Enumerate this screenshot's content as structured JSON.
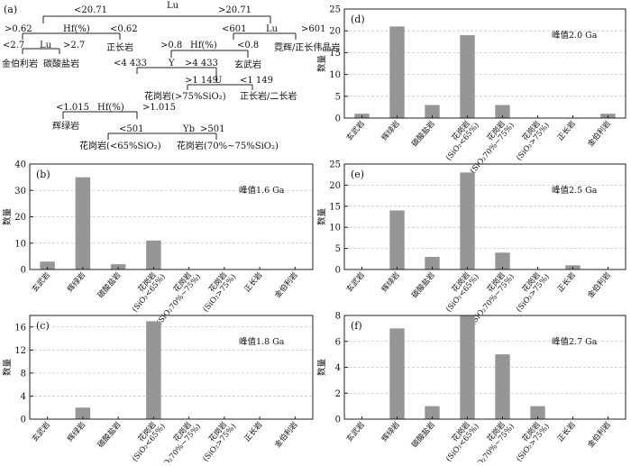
{
  "tree": {
    "label": "(a)",
    "nodes": {
      "lu_root": "Lu",
      "lt_20_71": "<20.71",
      "gt_20_71": ">20.71",
      "hf_left": "Hf(%)",
      "gt_0_62": ">0.62",
      "lt_0_62": "<0.62",
      "lu_mid": "Lu",
      "lt_2_7": "<2.7",
      "gt_2_7": ">2.7",
      "kimberlite": "金伯利岩",
      "carbonatite": "碳酸盐岩",
      "syenite_left": "正长岩",
      "lu_right": "Lu",
      "lt_601": "<601",
      "gt_601": ">601",
      "lamprophyre_pegmatite": "霓辉/正长伟晶岩",
      "hf_right": "Hf(%)",
      "gt_0_8": ">0.8",
      "lt_0_8": "<0.8",
      "basalt": "玄武岩",
      "y_node": "Y",
      "lt_4433": "<4 433",
      "gt_4433": ">4 433",
      "granite_gt75": "花岗岩(>75%SiO₂)",
      "u_node": "U",
      "gt_1149": ">1 149",
      "lt_1149": "<1 149",
      "syenite_monzonite": "正长岩/二长岩",
      "hf_low": "Hf(%)",
      "lt_1_015": "<1.015",
      "gt_1_015": ">1.015",
      "dolerite": "辉绿岩",
      "yb_node": "Yb",
      "lt_501": "<501",
      "gt_501": ">501",
      "granite_lt65": "花岗岩(<65%SiO₂)",
      "granite_70_75": "花岗岩(70%~75%SiO₂)"
    }
  },
  "ylabel": "数量",
  "chart_data": [
    {
      "panel": "(b)",
      "type": "bar",
      "annotation": "峰值1.6 Ga",
      "categories": [
        "玄武岩",
        "辉绿岩",
        "碳酸盐岩",
        "花岗岩(SiO₂<65%)",
        "花岗岩(SiO₂70%~75%)",
        "花岗岩(SiO₂>75%)",
        "正长岩",
        "金伯利岩"
      ],
      "values": [
        3,
        35,
        2,
        11,
        0,
        0,
        0,
        0
      ],
      "ylim": [
        0,
        40
      ],
      "yticks": [
        0,
        10,
        20,
        30,
        40
      ],
      "grid": true
    },
    {
      "panel": "(c)",
      "type": "bar",
      "annotation": "峰值1.8 Ga",
      "categories": [
        "玄武岩",
        "辉绿岩",
        "碳酸盐岩",
        "花岗岩(SiO₂<65%)",
        "花岗岩(SiO₂70%~75%)",
        "花岗岩(SiO₂>75%)",
        "正长岩",
        "金伯利岩"
      ],
      "values": [
        0,
        2,
        0,
        17,
        0,
        0,
        0,
        0
      ],
      "ylim": [
        0,
        18
      ],
      "yticks": [
        0,
        4,
        8,
        12,
        16
      ],
      "grid": true
    },
    {
      "panel": "(d)",
      "type": "bar",
      "annotation": "峰值2.0 Ga",
      "categories": [
        "玄武岩",
        "辉绿岩",
        "碳酸盐岩",
        "花岗岩(SiO₂<65%)",
        "花岗岩(SiO₂70%~75%)",
        "花岗岩(SiO₂>75%)",
        "正长岩",
        "金伯利岩"
      ],
      "values": [
        1,
        21,
        3,
        19,
        3,
        0,
        0,
        1
      ],
      "ylim": [
        0,
        25
      ],
      "yticks": [
        0,
        5,
        10,
        15,
        20,
        25
      ],
      "grid": true
    },
    {
      "panel": "(e)",
      "type": "bar",
      "annotation": "峰值2.5 Ga",
      "categories": [
        "玄武岩",
        "辉绿岩",
        "碳酸盐岩",
        "花岗岩(SiO₂<65%)",
        "花岗岩(SiO₂70%~75%)",
        "花岗岩(SiO₂>75%)",
        "正长岩",
        "金伯利岩"
      ],
      "values": [
        0,
        14,
        3,
        23,
        4,
        0,
        1,
        0
      ],
      "ylim": [
        0,
        25
      ],
      "yticks": [
        0,
        5,
        10,
        15,
        20,
        25
      ],
      "grid": true
    },
    {
      "panel": "(f)",
      "type": "bar",
      "annotation": "峰值2.7 Ga",
      "categories": [
        "玄武岩",
        "辉绿岩",
        "碳酸盐岩",
        "花岗岩(SiO₂<65%)",
        "花岗岩(SiO₂70%~75%)",
        "花岗岩(SiO₂>75%)",
        "正长岩",
        "金伯利岩"
      ],
      "values": [
        0,
        7,
        1,
        8,
        5,
        1,
        0,
        0
      ],
      "ylim": [
        0,
        8
      ],
      "yticks": [
        0,
        2,
        4,
        6,
        8
      ],
      "grid": true
    }
  ],
  "colors": {
    "bar": "#969696",
    "grid": "#c8c8c8",
    "axis": "#222222"
  }
}
